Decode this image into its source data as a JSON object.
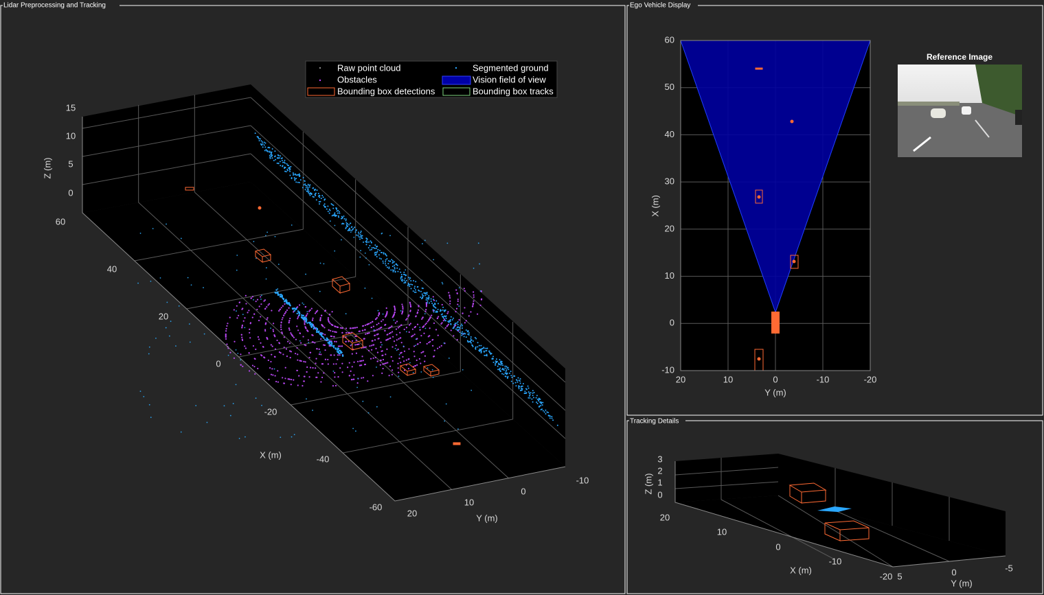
{
  "panels": {
    "lidar": {
      "title": "Lidar Preprocessing and Tracking",
      "x_label": "X (m)",
      "y_label": "Y (m)",
      "z_label": "Z (m)",
      "xticks": [
        60,
        40,
        20,
        0,
        -20,
        -40,
        -60
      ],
      "yticks": [
        20,
        10,
        0,
        -10
      ],
      "zticks": [
        15,
        10,
        5,
        0
      ],
      "legend": [
        "Raw point cloud",
        "Segmented ground",
        "Obstacles",
        "Vision field of view",
        "Bounding box detections",
        "Bounding box tracks"
      ]
    },
    "ego": {
      "title": "Ego Vehicle Display",
      "x_label": "Y (m)",
      "y_label": "X (m)",
      "xlim": [
        20,
        -20
      ],
      "xticks": [
        20,
        10,
        0,
        -10,
        -20
      ],
      "ylim": [
        -10,
        60
      ],
      "yticks": [
        -10,
        0,
        10,
        20,
        30,
        40,
        50,
        60
      ],
      "reference_image_title": "Reference Image"
    },
    "tracking": {
      "title": "Tracking Details",
      "x_label": "X (m)",
      "y_label": "Y (m)",
      "z_label": "Z (m)",
      "xticks": [
        20,
        10,
        0,
        -10,
        -20
      ],
      "yticks": [
        5,
        0,
        -5
      ],
      "zticks": [
        3,
        2,
        1,
        0
      ]
    }
  }
}
